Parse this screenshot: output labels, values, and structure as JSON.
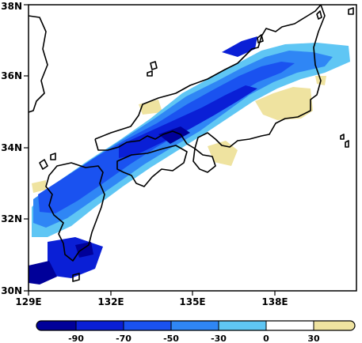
{
  "map": {
    "lat_range": [
      30,
      38
    ],
    "lon_range": [
      129,
      141
    ],
    "x_ticks": [
      "129E",
      "132E",
      "135E",
      "138E"
    ],
    "y_ticks": [
      "30N",
      "32N",
      "34N",
      "36N",
      "38N"
    ]
  },
  "colorbar": {
    "labels": [
      "-90",
      "-70",
      "-50",
      "-30",
      "0",
      "30"
    ],
    "colors": [
      "#000099",
      "#0a1fd6",
      "#1a52f0",
      "#2f86f5",
      "#5fc6f4",
      "#ffffff",
      "#efe3a0"
    ]
  }
}
